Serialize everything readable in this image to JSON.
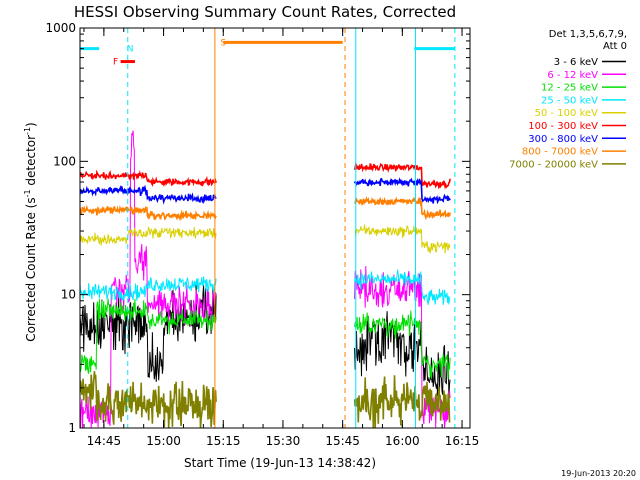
{
  "chart_data": {
    "type": "line",
    "title": "HESSI Observing Summary Count Rates, Corrected",
    "xlabel": "Start Time (19-Jun-13 14:38:42)",
    "ylabel_main": "Corrected Count Rate (s",
    "ylabel_sup1": "-1",
    "ylabel_mid": " detector",
    "ylabel_sup2": "-1",
    "ylabel_end": ")",
    "y_scale": "log",
    "xlim": [
      "14:39",
      "16:17"
    ],
    "ylim": [
      1,
      1000
    ],
    "x_ticks": [
      "14:45",
      "15:00",
      "15:15",
      "15:30",
      "15:45",
      "16:00",
      "16:15"
    ],
    "y_ticks": [
      "1",
      "10",
      "100",
      "1000"
    ],
    "legend_header": [
      "Det 1,3,5,6,7,9,",
      "Att 0"
    ],
    "legend_position": "top-right",
    "series": [
      {
        "name": "3 - 6 keV",
        "color": "#000000",
        "seg1": [
          [
            14.65,
            14.93,
            6.0
          ],
          [
            14.93,
            15.0,
            3.0
          ],
          [
            15.0,
            15.07,
            6.0
          ],
          [
            15.07,
            15.22,
            7.0
          ]
        ],
        "seg2": [
          [
            15.8,
            15.85,
            4.0
          ],
          [
            15.85,
            16.0,
            5.0
          ],
          [
            16.0,
            16.08,
            4.0
          ],
          [
            16.08,
            16.2,
            2.5
          ]
        ],
        "noise": 0.2
      },
      {
        "name": "6 - 12 keV",
        "color": "#ff00ff",
        "seg1": [
          [
            14.65,
            14.78,
            1.3
          ],
          [
            14.78,
            14.86,
            11.0
          ],
          [
            14.86,
            14.88,
            125.0
          ],
          [
            14.88,
            14.93,
            18.0
          ],
          [
            14.93,
            15.22,
            8.5
          ]
        ],
        "seg2": [
          [
            15.8,
            16.08,
            11.0
          ],
          [
            16.08,
            16.2,
            1.4
          ]
        ],
        "noise": 0.14
      },
      {
        "name": "12 - 25 keV",
        "color": "#00e000",
        "seg1": [
          [
            14.65,
            14.72,
            3.0
          ],
          [
            14.72,
            14.93,
            7.5
          ],
          [
            14.93,
            15.22,
            6.5
          ]
        ],
        "seg2": [
          [
            15.8,
            16.08,
            6.0
          ],
          [
            16.08,
            16.2,
            3.0
          ]
        ],
        "noise": 0.08
      },
      {
        "name": "25 - 50 keV",
        "color": "#00e8ff",
        "seg1": [
          [
            14.65,
            14.93,
            10.5
          ],
          [
            14.93,
            15.22,
            12.0
          ]
        ],
        "seg2": [
          [
            15.8,
            16.08,
            13.0
          ],
          [
            16.08,
            16.2,
            9.5
          ]
        ],
        "noise": 0.06
      },
      {
        "name": "50 - 100 keV",
        "color": "#d8d000",
        "seg1": [
          [
            14.65,
            14.85,
            26.0
          ],
          [
            14.85,
            15.22,
            29.0
          ]
        ],
        "seg2": [
          [
            15.8,
            16.08,
            30.0
          ],
          [
            16.08,
            16.2,
            23.0
          ]
        ],
        "noise": 0.04
      },
      {
        "name": "100 - 300 keV",
        "color": "#ff0000",
        "seg1": [
          [
            14.65,
            14.93,
            78.0
          ],
          [
            14.93,
            15.22,
            70.0
          ]
        ],
        "seg2": [
          [
            15.8,
            16.08,
            90.0
          ],
          [
            16.08,
            16.2,
            68.0
          ]
        ],
        "noise": 0.025
      },
      {
        "name": "300 - 800 keV",
        "color": "#0000ff",
        "seg1": [
          [
            14.65,
            14.93,
            60.0
          ],
          [
            14.93,
            15.22,
            53.0
          ]
        ],
        "seg2": [
          [
            15.8,
            16.08,
            70.0
          ],
          [
            16.08,
            16.2,
            52.0
          ]
        ],
        "noise": 0.025
      },
      {
        "name": "800 - 7000 keV",
        "color": "#ff8000",
        "seg1": [
          [
            14.65,
            14.93,
            43.0
          ],
          [
            14.93,
            15.22,
            39.0
          ]
        ],
        "seg2": [
          [
            15.8,
            16.08,
            50.0
          ],
          [
            16.08,
            16.2,
            40.0
          ]
        ],
        "noise": 0.025
      },
      {
        "name": "7000 - 20000 keV",
        "color": "#808000",
        "seg1": [
          [
            14.65,
            14.72,
            2.0
          ],
          [
            14.72,
            15.22,
            1.5
          ]
        ],
        "seg2": [
          [
            15.8,
            16.2,
            1.6
          ]
        ],
        "noise": 0.15
      }
    ],
    "flag_bars": [
      {
        "label": "",
        "color": "#00e8ff",
        "x_start": 14.65,
        "x_end": 14.73,
        "level": 700
      },
      {
        "label": "N",
        "color": "#00e8ff",
        "x_start": 14.86,
        "x_end": 14.86,
        "level": 700
      },
      {
        "label": "F",
        "color": "#ff0000",
        "x_start": 14.82,
        "x_end": 14.88,
        "level": 560
      },
      {
        "label": "S",
        "color": "#ff8000",
        "x_start": 15.25,
        "x_end": 15.75,
        "level": 780
      },
      {
        "label": "",
        "color": "#00e8ff",
        "x_start": 16.05,
        "x_end": 16.22,
        "level": 700
      }
    ],
    "vertical_lines": [
      {
        "x": 14.85,
        "color": "#00e8ff",
        "style": "dashed"
      },
      {
        "x": 15.215,
        "color": "#ff8000",
        "style": "solid"
      },
      {
        "x": 15.76,
        "color": "#ff8000",
        "style": "dashed"
      },
      {
        "x": 15.805,
        "color": "#00e8ff",
        "style": "solid"
      },
      {
        "x": 16.055,
        "color": "#00e8ff",
        "style": "solid"
      },
      {
        "x": 16.22,
        "color": "#00e8ff",
        "style": "dashed"
      }
    ],
    "footer_date": "19-Jun-2013 20:20"
  }
}
